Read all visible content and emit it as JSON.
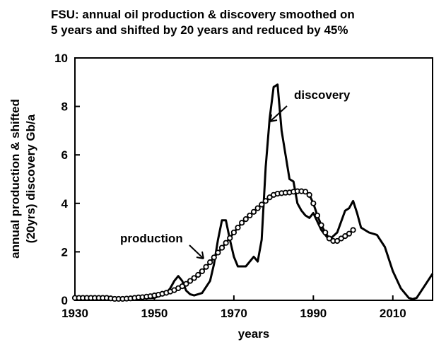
{
  "chart_data": {
    "type": "line",
    "title": [
      "FSU: annual oil production & discovery smoothed on",
      "5 years and shifted by 20 years and reduced by 45%"
    ],
    "y_label": [
      "annual production & shifted",
      "(20yrs) discovery Gb/a"
    ],
    "x_label": "years",
    "xlim": [
      1930,
      2020
    ],
    "xticks": [
      1930,
      1950,
      1970,
      1990,
      2010
    ],
    "ylim": [
      0,
      10
    ],
    "yticks": [
      0,
      2,
      4,
      6,
      8,
      10
    ],
    "annotations": [
      "discovery",
      "production"
    ],
    "series": [
      {
        "name": "discovery",
        "color": "#000000",
        "marker": "none",
        "x": [
          1930,
          1935,
          1940,
          1945,
          1950,
          1953,
          1954,
          1955,
          1956,
          1957,
          1958,
          1959,
          1960,
          1962,
          1964,
          1965,
          1966,
          1967,
          1968,
          1969,
          1970,
          1971,
          1973,
          1975,
          1976,
          1977,
          1978,
          1979,
          1980,
          1981,
          1982,
          1983,
          1984,
          1985,
          1986,
          1987,
          1988,
          1989,
          1990,
          1992,
          1994,
          1996,
          1998,
          1999,
          2000,
          2001,
          2002,
          2004,
          2006,
          2008,
          2010,
          2012,
          2014,
          2015,
          2016,
          2018,
          2020
        ],
        "values": [
          0.05,
          0.05,
          0.05,
          0.08,
          0.1,
          0.3,
          0.5,
          0.8,
          1.0,
          0.8,
          0.4,
          0.25,
          0.2,
          0.3,
          0.8,
          1.5,
          2.5,
          3.3,
          3.3,
          2.5,
          1.8,
          1.4,
          1.4,
          1.8,
          1.6,
          2.5,
          5.5,
          7.5,
          8.8,
          8.9,
          7.0,
          6.0,
          5.0,
          4.9,
          4.0,
          3.7,
          3.5,
          3.4,
          3.6,
          2.9,
          2.5,
          2.8,
          3.7,
          3.8,
          4.1,
          3.6,
          3.0,
          2.8,
          2.7,
          2.2,
          1.2,
          0.5,
          0.1,
          0.05,
          0.1,
          0.6,
          1.1
        ]
      },
      {
        "name": "production",
        "color": "#000000",
        "marker": "circle",
        "x": [
          1930,
          1931,
          1932,
          1933,
          1934,
          1935,
          1936,
          1937,
          1938,
          1939,
          1940,
          1941,
          1942,
          1943,
          1944,
          1945,
          1946,
          1947,
          1948,
          1949,
          1950,
          1951,
          1952,
          1953,
          1954,
          1955,
          1956,
          1957,
          1958,
          1959,
          1960,
          1961,
          1962,
          1963,
          1964,
          1965,
          1966,
          1967,
          1968,
          1969,
          1970,
          1971,
          1972,
          1973,
          1974,
          1975,
          1976,
          1977,
          1978,
          1979,
          1980,
          1981,
          1982,
          1983,
          1984,
          1985,
          1986,
          1987,
          1988,
          1989,
          1990,
          1991,
          1992,
          1993,
          1994,
          1995,
          1996,
          1997,
          1998,
          1999,
          2000
        ],
        "values": [
          0.1,
          0.1,
          0.1,
          0.1,
          0.1,
          0.1,
          0.1,
          0.1,
          0.1,
          0.08,
          0.06,
          0.06,
          0.06,
          0.07,
          0.08,
          0.1,
          0.12,
          0.13,
          0.15,
          0.17,
          0.2,
          0.23,
          0.27,
          0.31,
          0.36,
          0.42,
          0.5,
          0.58,
          0.68,
          0.8,
          0.92,
          1.05,
          1.2,
          1.38,
          1.57,
          1.77,
          1.97,
          2.17,
          2.37,
          2.57,
          2.8,
          3.0,
          3.2,
          3.35,
          3.5,
          3.65,
          3.8,
          3.95,
          4.1,
          4.25,
          4.35,
          4.4,
          4.42,
          4.44,
          4.45,
          4.48,
          4.5,
          4.5,
          4.48,
          4.35,
          4.0,
          3.5,
          3.1,
          2.8,
          2.55,
          2.45,
          2.45,
          2.55,
          2.65,
          2.75,
          2.9
        ]
      }
    ]
  }
}
